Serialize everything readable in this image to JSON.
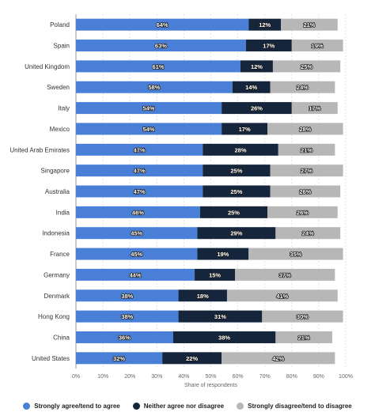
{
  "chart_data": {
    "type": "bar",
    "orientation": "horizontal",
    "stacked": true,
    "categories": [
      "Poland",
      "Spain",
      "United Kingdom",
      "Sweden",
      "Italy",
      "Mexico",
      "United Arab Emirates",
      "Singapore",
      "Australia",
      "India",
      "Indonesia",
      "France",
      "Germany",
      "Denmark",
      "Hong Kong",
      "China",
      "United States"
    ],
    "series": [
      {
        "name": "Strongly agree/tend to agree",
        "color": "#4a7fd8",
        "values": [
          64,
          63,
          61,
          58,
          54,
          54,
          47,
          47,
          47,
          46,
          45,
          45,
          44,
          38,
          38,
          36,
          32
        ]
      },
      {
        "name": "Neither agree nor disagree",
        "color": "#15253c",
        "values": [
          12,
          17,
          12,
          14,
          26,
          17,
          28,
          25,
          25,
          25,
          29,
          19,
          15,
          18,
          31,
          38,
          22
        ]
      },
      {
        "name": "Strongly disagree/tend to disagree",
        "color": "#b7b7b7",
        "values": [
          21,
          19,
          25,
          24,
          17,
          28,
          21,
          27,
          26,
          26,
          24,
          35,
          37,
          41,
          30,
          21,
          42
        ]
      }
    ],
    "xlabel": "Share of respondents",
    "ylabel": "",
    "xlim": [
      0,
      100
    ],
    "x_ticks": [
      "0%",
      "10%",
      "20%",
      "30%",
      "40%",
      "50%",
      "60%",
      "70%",
      "80%",
      "90%",
      "100%"
    ],
    "value_suffix": "%",
    "grid": true,
    "legend_position": "bottom"
  }
}
